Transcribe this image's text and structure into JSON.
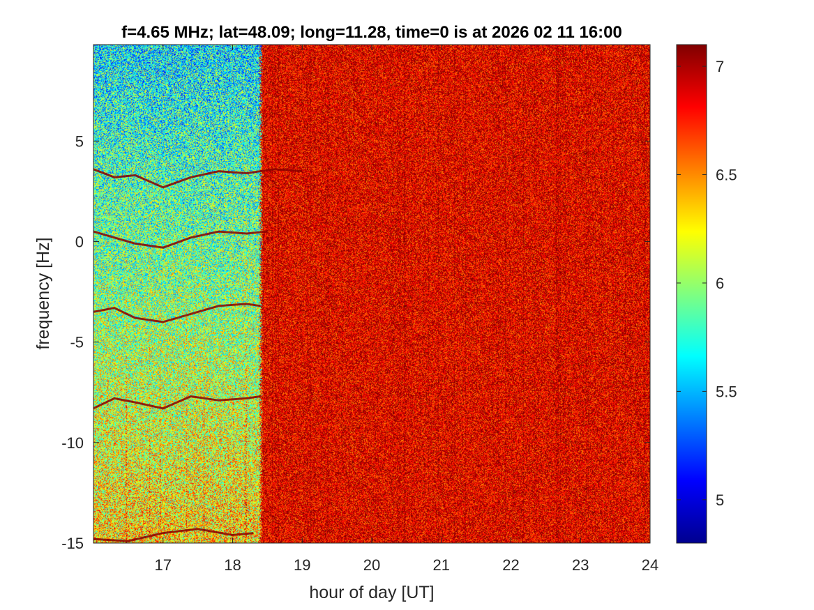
{
  "chart_data": {
    "type": "heatmap",
    "title": "f=4.65 MHz;  lat=48.09; long=11.28, time=0 is at 2026 02 11 16:00",
    "xlabel": "hour of day [UT]",
    "ylabel": "frequency [Hz]",
    "xlim": [
      16.0,
      24.0
    ],
    "ylim": [
      -15,
      9.8
    ],
    "x_ticks": [
      17,
      18,
      19,
      20,
      21,
      22,
      23,
      24
    ],
    "x_tick_labels": [
      "17",
      "18",
      "19",
      "20",
      "21",
      "22",
      "23",
      "24"
    ],
    "y_ticks": [
      5,
      0,
      -5,
      -10,
      -15
    ],
    "y_tick_labels": [
      "5",
      "0",
      "-5",
      "-10",
      "-15"
    ],
    "colorbar": {
      "colormap": "jet",
      "range": [
        4.8,
        7.1
      ],
      "ticks": [
        7,
        6.5,
        6,
        5.5,
        5
      ],
      "tick_labels": [
        "7",
        "6.5",
        "6",
        "5.5",
        "5"
      ]
    },
    "regions": [
      {
        "x_start": 16.0,
        "x_end": 18.4,
        "level_top": 5.4,
        "level_bottom": 6.2
      },
      {
        "x_start": 18.4,
        "x_end": 24.0,
        "level": 6.95
      }
    ],
    "traces": [
      {
        "x": [
          16.0,
          16.3,
          16.6,
          17.0,
          17.4,
          17.8,
          18.2,
          18.6,
          19.0
        ],
        "y": [
          3.6,
          3.2,
          3.3,
          2.7,
          3.2,
          3.5,
          3.4,
          3.6,
          3.5
        ]
      },
      {
        "x": [
          16.0,
          16.3,
          16.6,
          17.0,
          17.4,
          17.8,
          18.2,
          18.5
        ],
        "y": [
          0.5,
          0.2,
          -0.1,
          -0.3,
          0.2,
          0.5,
          0.4,
          0.5
        ]
      },
      {
        "x": [
          16.0,
          16.3,
          16.6,
          17.0,
          17.4,
          17.8,
          18.2,
          18.4
        ],
        "y": [
          -3.5,
          -3.3,
          -3.8,
          -4.0,
          -3.6,
          -3.2,
          -3.1,
          -3.2
        ]
      },
      {
        "x": [
          16.0,
          16.3,
          16.6,
          17.0,
          17.4,
          17.8,
          18.2,
          18.4
        ],
        "y": [
          -8.3,
          -7.8,
          -8.0,
          -8.3,
          -7.7,
          -7.9,
          -7.8,
          -7.7
        ]
      },
      {
        "x": [
          16.0,
          16.5,
          17.0,
          17.5,
          18.0,
          18.3
        ],
        "y": [
          -14.8,
          -14.9,
          -14.5,
          -14.3,
          -14.6,
          -14.5
        ]
      }
    ],
    "grid": false,
    "legend": "none"
  }
}
